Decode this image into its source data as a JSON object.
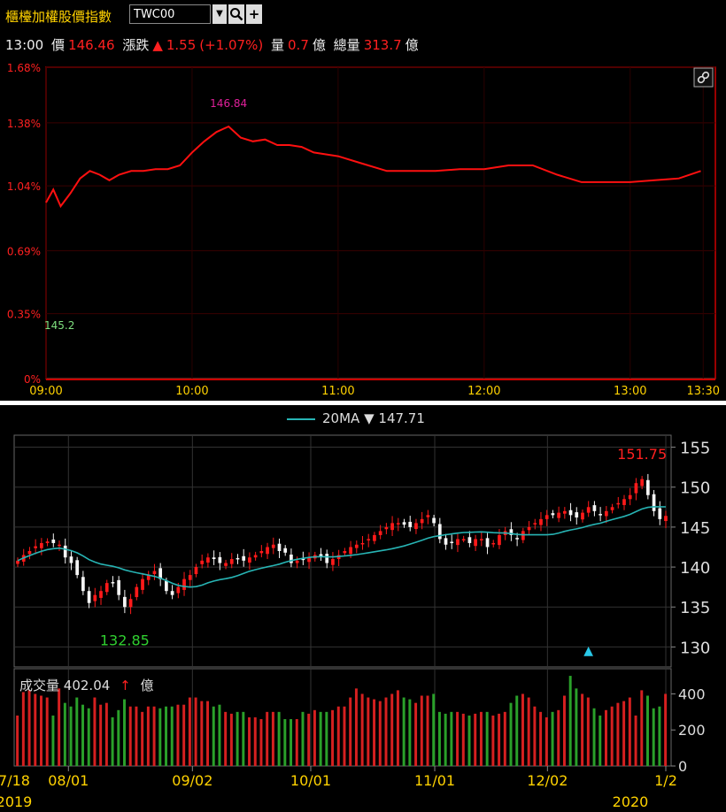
{
  "toolbar": {
    "title": "櫃檯加權股價指數",
    "symbol": "TWC00",
    "dropdown_icon": "▼",
    "search_icon": "🔍",
    "add_icon": "+"
  },
  "quote": {
    "time": "13:00",
    "price_label": "價",
    "price": "146.46",
    "change_label": "漲跌",
    "change_arrow": "▲",
    "change": "1.55",
    "change_pct": "(+1.07%)",
    "volume_label": "量",
    "volume": "0.7",
    "volume_unit": "億",
    "total_label": "總量",
    "total": "313.7",
    "total_unit": "億"
  },
  "colors": {
    "up": "#ff2020",
    "down": "#20a020",
    "ma": "#27b4b4",
    "grid": "#333333",
    "frame": "#cc0000"
  },
  "chart_data": [
    {
      "type": "line",
      "y_ticks": [
        "1.68%",
        "1.38%",
        "1.04%",
        "0.69%",
        "0.35%",
        "0%"
      ],
      "y_tick_values": [
        1.68,
        1.38,
        1.04,
        0.69,
        0.35,
        0
      ],
      "x_ticks": [
        "09:00",
        "10:00",
        "11:00",
        "12:00",
        "13:00",
        "13:30"
      ],
      "ylim": [
        0,
        1.68
      ],
      "base_label": "145.2",
      "high_label": "146.84",
      "link_icon": "link-icon",
      "series": [
        {
          "x": [
            "09:00",
            "09:03",
            "09:06",
            "09:10",
            "09:14",
            "09:18",
            "09:22",
            "09:26",
            "09:30",
            "09:35",
            "09:40",
            "09:45",
            "09:50",
            "09:55",
            "10:00",
            "10:05",
            "10:10",
            "10:15",
            "10:20",
            "10:25",
            "10:30",
            "10:35",
            "10:40",
            "10:45",
            "10:50",
            "10:55",
            "11:00",
            "11:10",
            "11:20",
            "11:30",
            "11:40",
            "11:50",
            "12:00",
            "12:10",
            "12:20",
            "12:30",
            "12:40",
            "12:50",
            "13:00",
            "13:10",
            "13:20",
            "13:29"
          ],
          "values": [
            0.95,
            1.02,
            0.93,
            1.0,
            1.08,
            1.12,
            1.1,
            1.07,
            1.1,
            1.12,
            1.12,
            1.13,
            1.13,
            1.15,
            1.22,
            1.28,
            1.33,
            1.36,
            1.3,
            1.28,
            1.29,
            1.26,
            1.26,
            1.25,
            1.22,
            1.21,
            1.2,
            1.16,
            1.12,
            1.12,
            1.12,
            1.13,
            1.13,
            1.15,
            1.15,
            1.1,
            1.06,
            1.06,
            1.06,
            1.07,
            1.08,
            1.12
          ]
        }
      ]
    },
    {
      "type": "candlestick",
      "legend": {
        "name": "20MA",
        "arrow": "▼",
        "value": "147.71"
      },
      "y_ticks": [
        "155",
        "150",
        "145",
        "140",
        "135",
        "130"
      ],
      "y_tick_values": [
        155,
        150,
        145,
        140,
        135,
        130
      ],
      "ylim": [
        127.5,
        156.5
      ],
      "x_ticks": [
        "7/18",
        "08/01",
        "09/02",
        "10/01",
        "11/01",
        "12/02",
        "1/2"
      ],
      "year_labels": [
        "2019",
        "2020"
      ],
      "high_label": "151.75",
      "low_label": "132.85",
      "marker": "▲",
      "series": [
        {
          "name": "close",
          "values": [
            140.8,
            141.5,
            142.0,
            142.6,
            143.0,
            143.2,
            143.0,
            142.8,
            141.2,
            140.5,
            139.0,
            137.0,
            135.5,
            136.5,
            137.0,
            138.0,
            138.0,
            136.5,
            135.0,
            136.0,
            137.5,
            138.5,
            139.0,
            139.5,
            138.5,
            137.0,
            136.5,
            137.5,
            138.5,
            139.0,
            140.0,
            140.8,
            141.2,
            141.0,
            140.5,
            140.5,
            141.0,
            141.0,
            140.8,
            141.2,
            141.5,
            142.0,
            142.5,
            142.8,
            142.0,
            141.8,
            140.5,
            140.8,
            141.0,
            141.2,
            141.5,
            141.3,
            140.5,
            141.0,
            141.5,
            142.0,
            142.5,
            142.8,
            143.0,
            143.5,
            144.0,
            144.5,
            145.0,
            145.5,
            145.5,
            145.3,
            145.0,
            145.5,
            146.0,
            146.5,
            145.5,
            143.5,
            142.8,
            143.0,
            143.5,
            143.5,
            143.0,
            143.5,
            143.5,
            142.5,
            143.0,
            144.0,
            144.5,
            144.0,
            143.5,
            144.5,
            145.0,
            145.5,
            146.0,
            146.5,
            146.5,
            146.8,
            147.0,
            146.5,
            146.2,
            146.8,
            147.5,
            147.0,
            146.5,
            147.0,
            147.5,
            148.0,
            148.5,
            149.0,
            150.5,
            151.0,
            149.0,
            147.0,
            146.0,
            146.4
          ]
        },
        {
          "name": "volume",
          "values": [
            280,
            410,
            420,
            400,
            390,
            380,
            280,
            430,
            350,
            330,
            380,
            340,
            320,
            380,
            340,
            350,
            270,
            310,
            370,
            330,
            330,
            300,
            330,
            330,
            320,
            330,
            330,
            340,
            340,
            380,
            380,
            360,
            360,
            330,
            340,
            300,
            290,
            300,
            300,
            270,
            270,
            260,
            300,
            300,
            300,
            260,
            260,
            260,
            300,
            290,
            310,
            300,
            300,
            310,
            330,
            330,
            380,
            430,
            400,
            380,
            370,
            360,
            380,
            400,
            420,
            380,
            370,
            350,
            390,
            390,
            400,
            300,
            290,
            300,
            300,
            290,
            280,
            290,
            300,
            300,
            280,
            290,
            300,
            350,
            390,
            400,
            380,
            330,
            300,
            270,
            300,
            310,
            390,
            500,
            430,
            400,
            380,
            320,
            280,
            310,
            330,
            350,
            360,
            380,
            280,
            420,
            390,
            320,
            330,
            400
          ]
        }
      ],
      "vol_legend": {
        "label": "成交量",
        "value": "402.04",
        "arrow": "↑",
        "unit": "億"
      },
      "vol_ticks": [
        "400",
        "200",
        "0"
      ],
      "vol_tick_values": [
        400,
        200,
        0
      ],
      "vol_ylim": [
        0,
        520
      ]
    }
  ]
}
